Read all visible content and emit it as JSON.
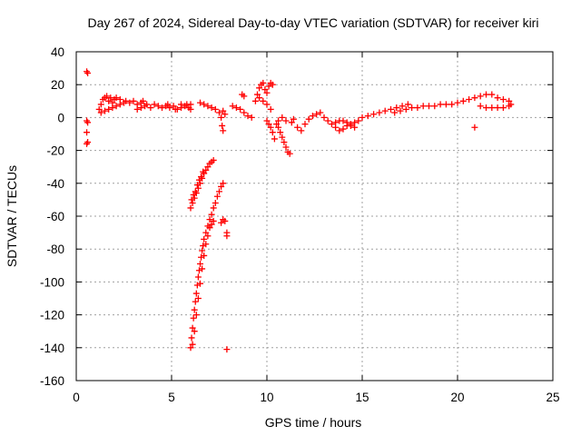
{
  "chart_data": {
    "type": "scatter",
    "title": "Day 267 of 2024, Sidereal Day-to-day VTEC variation (SDTVAR) for receiver kiri",
    "xlabel": "GPS time / hours",
    "ylabel": "SDTVAR / TECUs",
    "xlim": [
      0,
      25
    ],
    "ylim": [
      -160,
      40
    ],
    "xticks": [
      0,
      5,
      10,
      15,
      20,
      25
    ],
    "yticks": [
      40,
      20,
      0,
      -20,
      -40,
      -60,
      -80,
      -100,
      -120,
      -140,
      -160
    ],
    "grid": true,
    "marker": "+",
    "color": "#ff0000",
    "series": [
      {
        "name": "SDTVAR",
        "points": [
          [
            0.55,
            28
          ],
          [
            0.6,
            27
          ],
          [
            0.55,
            -2
          ],
          [
            0.6,
            -3
          ],
          [
            0.55,
            -9
          ],
          [
            0.6,
            -15
          ],
          [
            0.55,
            -16
          ],
          [
            1.2,
            5
          ],
          [
            1.3,
            8
          ],
          [
            1.4,
            11
          ],
          [
            1.5,
            12
          ],
          [
            1.6,
            13
          ],
          [
            1.7,
            10
          ],
          [
            1.8,
            12
          ],
          [
            1.9,
            9
          ],
          [
            2.0,
            11
          ],
          [
            1.3,
            3
          ],
          [
            1.5,
            4
          ],
          [
            1.7,
            5
          ],
          [
            1.9,
            6
          ],
          [
            2.1,
            7
          ],
          [
            2.3,
            8
          ],
          [
            2.5,
            9
          ],
          [
            2.1,
            12
          ],
          [
            2.3,
            11
          ],
          [
            2.6,
            10
          ],
          [
            2.8,
            9
          ],
          [
            3.0,
            10
          ],
          [
            3.2,
            8
          ],
          [
            3.4,
            9
          ],
          [
            3.2,
            5
          ],
          [
            3.4,
            6
          ],
          [
            3.6,
            7
          ],
          [
            3.5,
            10
          ],
          [
            3.7,
            8
          ],
          [
            3.9,
            6
          ],
          [
            4.1,
            8
          ],
          [
            4.3,
            7
          ],
          [
            4.5,
            6
          ],
          [
            4.7,
            7
          ],
          [
            4.9,
            6
          ],
          [
            5.1,
            7
          ],
          [
            5.3,
            5
          ],
          [
            5.5,
            6
          ],
          [
            5.7,
            7
          ],
          [
            5.9,
            6
          ],
          [
            6.0,
            5
          ],
          [
            6.0,
            8
          ],
          [
            5.8,
            8
          ],
          [
            5.5,
            8
          ],
          [
            5.2,
            5
          ],
          [
            4.8,
            8
          ],
          [
            6.5,
            9
          ],
          [
            6.7,
            8
          ],
          [
            6.9,
            7
          ],
          [
            7.1,
            6
          ],
          [
            7.3,
            5
          ],
          [
            7.5,
            3
          ],
          [
            7.6,
            0
          ],
          [
            7.65,
            -5
          ],
          [
            7.7,
            -8
          ],
          [
            7.8,
            2
          ],
          [
            7.7,
            4
          ],
          [
            6.0,
            -55
          ],
          [
            6.1,
            -52
          ],
          [
            6.2,
            -49
          ],
          [
            6.3,
            -46
          ],
          [
            6.4,
            -43
          ],
          [
            6.5,
            -40
          ],
          [
            6.6,
            -37
          ],
          [
            6.7,
            -34
          ],
          [
            6.8,
            -32
          ],
          [
            6.9,
            -30
          ],
          [
            7.0,
            -28
          ],
          [
            7.1,
            -27
          ],
          [
            7.2,
            -26
          ],
          [
            6.05,
            -50
          ],
          [
            6.15,
            -47
          ],
          [
            6.25,
            -45
          ],
          [
            6.35,
            -41
          ],
          [
            6.45,
            -38
          ],
          [
            6.55,
            -36
          ],
          [
            6.65,
            -33
          ],
          [
            6.0,
            -140
          ],
          [
            6.05,
            -134
          ],
          [
            6.1,
            -128
          ],
          [
            6.15,
            -122
          ],
          [
            6.2,
            -117
          ],
          [
            6.25,
            -112
          ],
          [
            6.3,
            -107
          ],
          [
            6.35,
            -102
          ],
          [
            6.4,
            -97
          ],
          [
            6.45,
            -93
          ],
          [
            6.5,
            -89
          ],
          [
            6.55,
            -85
          ],
          [
            6.6,
            -81
          ],
          [
            6.65,
            -78
          ],
          [
            6.7,
            -74
          ],
          [
            6.8,
            -70
          ],
          [
            6.9,
            -66
          ],
          [
            7.0,
            -62
          ],
          [
            7.1,
            -59
          ],
          [
            7.2,
            -55
          ],
          [
            7.3,
            -52
          ],
          [
            7.4,
            -48
          ],
          [
            7.5,
            -45
          ],
          [
            7.6,
            -42
          ],
          [
            7.7,
            -40
          ],
          [
            6.1,
            -138
          ],
          [
            6.2,
            -130
          ],
          [
            6.3,
            -120
          ],
          [
            6.4,
            -110
          ],
          [
            6.5,
            -101
          ],
          [
            6.6,
            -92
          ],
          [
            6.7,
            -84
          ],
          [
            6.8,
            -77
          ],
          [
            6.9,
            -72
          ],
          [
            7.0,
            -67
          ],
          [
            7.1,
            -65
          ],
          [
            7.2,
            -63
          ],
          [
            7.6,
            -64
          ],
          [
            7.7,
            -62
          ],
          [
            7.8,
            -63
          ],
          [
            7.9,
            -70
          ],
          [
            7.9,
            -72
          ],
          [
            7.9,
            -141
          ],
          [
            8.2,
            7
          ],
          [
            8.4,
            6
          ],
          [
            8.6,
            5
          ],
          [
            8.8,
            3
          ],
          [
            9.0,
            1
          ],
          [
            9.2,
            0
          ],
          [
            8.7,
            14
          ],
          [
            8.8,
            13
          ],
          [
            9.4,
            10
          ],
          [
            9.5,
            14
          ],
          [
            9.6,
            18
          ],
          [
            9.7,
            20
          ],
          [
            9.8,
            21
          ],
          [
            9.9,
            17
          ],
          [
            10.0,
            15
          ],
          [
            10.1,
            19
          ],
          [
            10.2,
            21
          ],
          [
            10.3,
            20
          ],
          [
            9.6,
            12
          ],
          [
            9.8,
            10
          ],
          [
            10.0,
            8
          ],
          [
            10.2,
            5
          ],
          [
            10.0,
            -2
          ],
          [
            10.1,
            -4
          ],
          [
            10.2,
            -6
          ],
          [
            10.3,
            -9
          ],
          [
            10.4,
            -13
          ],
          [
            10.5,
            -4
          ],
          [
            10.6,
            -2
          ],
          [
            10.8,
            0
          ],
          [
            11.0,
            -2
          ],
          [
            10.6,
            -6
          ],
          [
            10.7,
            -9
          ],
          [
            10.8,
            -12
          ],
          [
            10.9,
            -15
          ],
          [
            11.0,
            -18
          ],
          [
            11.1,
            -21
          ],
          [
            11.2,
            -22
          ],
          [
            11.3,
            -3
          ],
          [
            11.4,
            -1
          ],
          [
            11.6,
            -6
          ],
          [
            11.8,
            -8
          ],
          [
            12.0,
            -4
          ],
          [
            12.2,
            -1
          ],
          [
            12.4,
            1
          ],
          [
            12.6,
            2
          ],
          [
            12.8,
            3
          ],
          [
            13.0,
            0
          ],
          [
            13.2,
            -2
          ],
          [
            13.4,
            -4
          ],
          [
            13.6,
            -6
          ],
          [
            13.8,
            -8
          ],
          [
            14.0,
            -7
          ],
          [
            14.2,
            -5
          ],
          [
            14.4,
            -4
          ],
          [
            14.6,
            -3
          ],
          [
            14.8,
            -2
          ],
          [
            13.6,
            -3
          ],
          [
            13.8,
            -2
          ],
          [
            14.0,
            -2
          ],
          [
            14.2,
            -3
          ],
          [
            14.4,
            -5
          ],
          [
            14.6,
            -6
          ],
          [
            15.0,
            0
          ],
          [
            15.3,
            1
          ],
          [
            15.6,
            2
          ],
          [
            15.9,
            3
          ],
          [
            16.2,
            4
          ],
          [
            16.5,
            5
          ],
          [
            16.8,
            6
          ],
          [
            17.1,
            7
          ],
          [
            17.4,
            8
          ],
          [
            16.7,
            3
          ],
          [
            17.0,
            4
          ],
          [
            17.3,
            5
          ],
          [
            17.6,
            6
          ],
          [
            17.9,
            6
          ],
          [
            18.2,
            7
          ],
          [
            18.5,
            7
          ],
          [
            18.8,
            7
          ],
          [
            19.1,
            8
          ],
          [
            19.4,
            8
          ],
          [
            19.7,
            8
          ],
          [
            20.0,
            9
          ],
          [
            20.3,
            10
          ],
          [
            20.6,
            11
          ],
          [
            20.9,
            12
          ],
          [
            21.2,
            13
          ],
          [
            21.5,
            14
          ],
          [
            21.8,
            14
          ],
          [
            22.1,
            12
          ],
          [
            22.4,
            11
          ],
          [
            22.7,
            10
          ],
          [
            22.8,
            8
          ],
          [
            21.2,
            7
          ],
          [
            21.5,
            6
          ],
          [
            21.8,
            6
          ],
          [
            22.1,
            6
          ],
          [
            22.4,
            6
          ],
          [
            22.7,
            7
          ],
          [
            20.9,
            -6
          ]
        ]
      }
    ]
  }
}
